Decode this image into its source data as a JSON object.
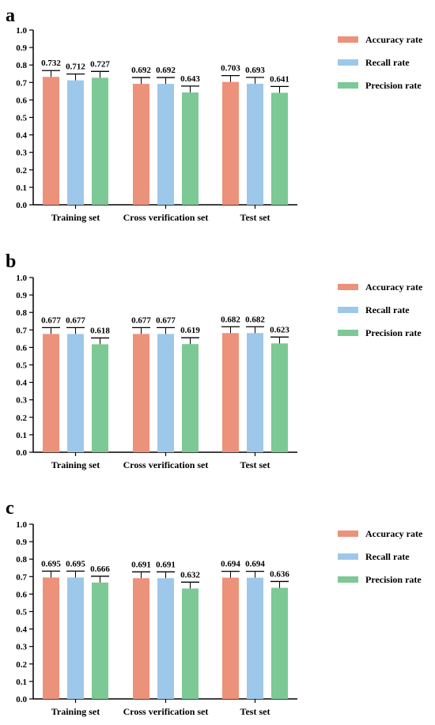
{
  "colors": {
    "Accuracy rate": "#ec927a",
    "Recall rate": "#9ec8ea",
    "Precision rate": "#7dc995"
  },
  "chart_data": [
    {
      "panel": "a",
      "type": "bar",
      "categories": [
        "Training set",
        "Cross verification set",
        "Test set"
      ],
      "series": [
        {
          "name": "Accuracy rate",
          "values": [
            0.732,
            0.692,
            0.703
          ]
        },
        {
          "name": "Recall rate",
          "values": [
            0.712,
            0.692,
            0.693
          ]
        },
        {
          "name": "Precision rate",
          "values": [
            0.727,
            0.643,
            0.641
          ]
        }
      ],
      "ylim": [
        0,
        1.0
      ],
      "yticks": [
        "0.0",
        "0.1",
        "0.2",
        "0.3",
        "0.4",
        "0.5",
        "0.6",
        "0.7",
        "0.8",
        "0.9",
        "1.0"
      ],
      "legend_position": "right",
      "error_bars": true,
      "grid": false
    },
    {
      "panel": "b",
      "type": "bar",
      "categories": [
        "Training set",
        "Cross verification set",
        "Test set"
      ],
      "series": [
        {
          "name": "Accuracy rate",
          "values": [
            0.677,
            0.677,
            0.682
          ]
        },
        {
          "name": "Recall rate",
          "values": [
            0.677,
            0.677,
            0.682
          ]
        },
        {
          "name": "Precision rate",
          "values": [
            0.618,
            0.619,
            0.623
          ]
        }
      ],
      "ylim": [
        0,
        1.0
      ],
      "yticks": [
        "0.0",
        "0.1",
        "0.2",
        "0.3",
        "0.4",
        "0.5",
        "0.6",
        "0.7",
        "0.8",
        "0.9",
        "1.0"
      ],
      "legend_position": "right",
      "error_bars": true,
      "grid": false
    },
    {
      "panel": "c",
      "type": "bar",
      "categories": [
        "Training set",
        "Cross verification set",
        "Test set"
      ],
      "series": [
        {
          "name": "Accuracy rate",
          "values": [
            0.695,
            0.691,
            0.694
          ]
        },
        {
          "name": "Recall rate",
          "values": [
            0.695,
            0.691,
            0.694
          ]
        },
        {
          "name": "Precision rate",
          "values": [
            0.666,
            0.632,
            0.636
          ]
        }
      ],
      "ylim": [
        0,
        1.0
      ],
      "yticks": [
        "0.0",
        "0.1",
        "0.2",
        "0.3",
        "0.4",
        "0.5",
        "0.6",
        "0.7",
        "0.8",
        "0.9",
        "1.0"
      ],
      "legend_position": "right",
      "error_bars": true,
      "grid": false
    }
  ]
}
